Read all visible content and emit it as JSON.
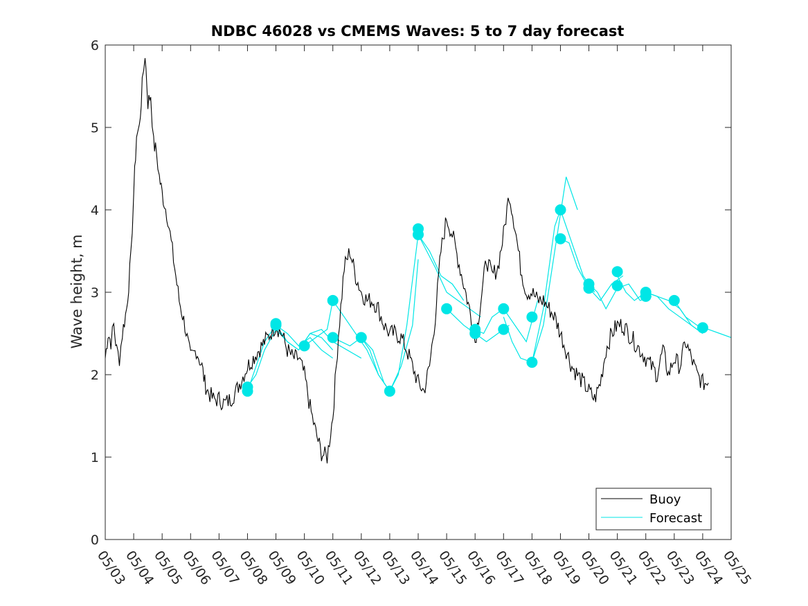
{
  "chart_data": {
    "type": "line",
    "title": "NDBC 46028 vs CMEMS Waves: 5 to 7 day forecast",
    "xlabel": "",
    "ylabel": "Wave height, m",
    "xlim": [
      "05/03",
      "05/25"
    ],
    "ylim": [
      0,
      6
    ],
    "x_ticks": [
      "05/03",
      "05/04",
      "05/05",
      "05/06",
      "05/07",
      "05/08",
      "05/09",
      "05/10",
      "05/11",
      "05/12",
      "05/13",
      "05/14",
      "05/15",
      "05/16",
      "05/17",
      "05/18",
      "05/19",
      "05/20",
      "05/21",
      "05/22",
      "05/23",
      "05/24",
      "05/25"
    ],
    "y_ticks": [
      0,
      1,
      2,
      3,
      4,
      5,
      6
    ],
    "grid": false,
    "legend_position": "bottom-right",
    "x_units": "days since 05/03",
    "series": [
      {
        "name": "Buoy",
        "color": "#000000",
        "x": [
          0.0,
          0.1,
          0.2,
          0.3,
          0.4,
          0.5,
          0.6,
          0.75,
          0.9,
          1.0,
          1.1,
          1.2,
          1.3,
          1.4,
          1.5,
          1.6,
          1.7,
          1.8,
          1.9,
          2.0,
          2.2,
          2.4,
          2.6,
          2.8,
          3.0,
          3.2,
          3.4,
          3.5,
          3.6,
          3.8,
          4.0,
          4.2,
          4.4,
          4.6,
          4.8,
          5.0,
          5.2,
          5.4,
          5.6,
          5.8,
          6.0,
          6.2,
          6.4,
          6.6,
          6.8,
          7.0,
          7.2,
          7.4,
          7.6,
          7.8,
          8.0,
          8.2,
          8.4,
          8.6,
          8.8,
          9.0,
          9.2,
          9.4,
          9.6,
          9.7,
          9.8,
          9.9,
          10.0,
          10.2,
          10.4,
          10.6,
          10.8,
          11.0,
          11.2,
          11.4,
          11.6,
          11.8,
          12.0,
          12.2,
          12.4,
          12.6,
          12.8,
          13.0,
          13.2,
          13.4,
          13.6,
          13.8,
          14.0,
          14.2,
          14.4,
          14.6,
          14.8,
          15.0,
          15.2,
          15.4,
          15.6,
          15.8,
          16.0,
          16.2,
          16.4,
          16.6,
          16.8,
          17.0,
          17.2,
          17.4,
          17.6,
          17.8,
          18.0,
          18.2,
          18.4,
          18.6,
          18.8,
          19.0,
          19.2,
          19.4,
          19.6,
          19.8,
          20.0,
          20.2,
          20.4,
          20.6,
          20.8,
          21.0,
          21.2
        ],
        "values": [
          2.2,
          2.5,
          2.4,
          2.6,
          2.3,
          2.2,
          2.5,
          2.8,
          3.4,
          4.2,
          4.9,
          5.0,
          5.5,
          5.9,
          5.3,
          5.4,
          4.8,
          4.7,
          4.4,
          4.2,
          3.9,
          3.4,
          2.9,
          2.6,
          2.2,
          2.3,
          2.1,
          1.9,
          1.8,
          1.7,
          1.7,
          1.65,
          1.7,
          1.8,
          1.95,
          2.1,
          2.2,
          2.3,
          2.4,
          2.5,
          2.6,
          2.5,
          2.3,
          2.2,
          2.2,
          2.0,
          1.6,
          1.3,
          1.05,
          1.0,
          1.5,
          2.5,
          3.3,
          3.5,
          3.2,
          3.0,
          2.9,
          2.9,
          2.8,
          2.7,
          2.6,
          2.55,
          2.5,
          2.5,
          2.45,
          2.3,
          2.1,
          1.9,
          1.8,
          2.1,
          2.7,
          3.5,
          3.9,
          3.7,
          3.4,
          3.1,
          2.8,
          2.4,
          2.9,
          3.4,
          3.2,
          3.3,
          3.7,
          4.2,
          3.8,
          3.3,
          3.0,
          3.0,
          2.9,
          2.9,
          2.8,
          2.7,
          2.5,
          2.3,
          2.1,
          2.0,
          1.9,
          1.8,
          1.7,
          1.9,
          2.3,
          2.5,
          2.6,
          2.6,
          2.5,
          2.4,
          2.3,
          2.2,
          2.1,
          2.0,
          2.3,
          2.0,
          2.2,
          2.1,
          2.4,
          2.2,
          2.0,
          1.9,
          1.9
        ]
      },
      {
        "name": "Forecast",
        "color": "#00e6e6",
        "values": []
      }
    ],
    "forecast_runs": [
      {
        "x": [
          5.0,
          5.3,
          5.6,
          6.0,
          6.4,
          6.8,
          7.2,
          7.6,
          8.0
        ],
        "values": [
          1.85,
          2.0,
          2.3,
          2.55,
          2.4,
          2.3,
          2.5,
          2.45,
          2.3
        ]
      },
      {
        "x": [
          5.0,
          5.3,
          5.6,
          6.0,
          6.4,
          6.8,
          7.2,
          7.6,
          8.0
        ],
        "values": [
          1.8,
          2.1,
          2.4,
          2.6,
          2.5,
          2.35,
          2.45,
          2.3,
          2.2
        ]
      },
      {
        "x": [
          6.0,
          6.4,
          6.8,
          7.2,
          7.6,
          8.0,
          8.5,
          9.0
        ],
        "values": [
          2.6,
          2.4,
          2.3,
          2.5,
          2.55,
          2.4,
          2.3,
          2.2
        ]
      },
      {
        "x": [
          7.0,
          7.4,
          7.8,
          8.0,
          8.4,
          8.8,
          9.2,
          9.6,
          10.0
        ],
        "values": [
          2.35,
          2.45,
          2.55,
          2.9,
          2.7,
          2.5,
          2.3,
          2.0,
          1.8
        ]
      },
      {
        "x": [
          8.0,
          8.3,
          8.6,
          9.0,
          9.4,
          9.8,
          10.1
        ],
        "values": [
          2.45,
          2.4,
          2.35,
          2.45,
          2.3,
          1.9,
          1.75
        ]
      },
      {
        "x": [
          9.0,
          9.3,
          9.6,
          10.0,
          10.4,
          10.8,
          11.0
        ],
        "values": [
          2.45,
          2.3,
          2.0,
          1.8,
          2.1,
          2.6,
          3.4
        ]
      },
      {
        "x": [
          10.0,
          10.3,
          10.6,
          11.0,
          11.4,
          11.8,
          12.2,
          12.6
        ],
        "values": [
          1.8,
          2.0,
          2.6,
          3.7,
          3.5,
          3.2,
          3.1,
          2.9
        ]
      },
      {
        "x": [
          11.0,
          11.3,
          11.6,
          12.0,
          12.4,
          12.8,
          13.2
        ],
        "values": [
          3.7,
          3.5,
          3.3,
          3.0,
          2.9,
          2.8,
          2.7
        ]
      },
      {
        "x": [
          12.0,
          12.3,
          12.6,
          13.0,
          13.4,
          13.8,
          14.2
        ],
        "values": [
          2.8,
          2.7,
          2.6,
          2.5,
          2.4,
          2.5,
          2.6
        ]
      },
      {
        "x": [
          13.0,
          13.3,
          13.6,
          14.0,
          14.4,
          14.8,
          15.2
        ],
        "values": [
          2.55,
          2.5,
          2.7,
          2.8,
          2.6,
          2.4,
          2.9
        ]
      },
      {
        "x": [
          14.0,
          14.3,
          14.6,
          15.0,
          15.4,
          15.8,
          16.2,
          16.6
        ],
        "values": [
          2.7,
          2.4,
          2.2,
          2.15,
          2.6,
          3.5,
          4.4,
          4.0
        ]
      },
      {
        "x": [
          15.0,
          15.4,
          15.8,
          16.0,
          16.4,
          16.8,
          17.2
        ],
        "values": [
          2.15,
          2.8,
          3.8,
          4.0,
          3.6,
          3.2,
          3.0
        ]
      },
      {
        "x": [
          16.0,
          16.3,
          16.6,
          17.0,
          17.4,
          17.8,
          18.2
        ],
        "values": [
          3.65,
          3.6,
          3.3,
          3.05,
          2.9,
          3.1,
          3.2
        ]
      },
      {
        "x": [
          17.0,
          17.3,
          17.6,
          18.0,
          18.4,
          18.8,
          19.2
        ],
        "values": [
          3.1,
          3.0,
          2.8,
          3.05,
          3.1,
          2.9,
          2.95
        ]
      },
      {
        "x": [
          18.0,
          18.3,
          18.6,
          19.0,
          19.4,
          19.8,
          20.2,
          20.6,
          21.0
        ],
        "values": [
          3.2,
          3.0,
          2.9,
          3.0,
          2.95,
          2.8,
          2.7,
          2.6,
          2.5
        ]
      },
      {
        "x": [
          19.0,
          19.4,
          19.8,
          20.2,
          20.6,
          21.0
        ],
        "values": [
          3.0,
          2.95,
          2.9,
          2.8,
          2.6,
          2.5
        ]
      },
      {
        "x": [
          20.0,
          20.4,
          20.8,
          21.2,
          21.6,
          22.0
        ],
        "values": [
          2.9,
          2.7,
          2.6,
          2.55,
          2.5,
          2.45
        ]
      }
    ],
    "forecast_markers": [
      {
        "x": 5.0,
        "y": 1.85
      },
      {
        "x": 5.0,
        "y": 1.8
      },
      {
        "x": 6.0,
        "y": 2.6
      },
      {
        "x": 6.0,
        "y": 2.62
      },
      {
        "x": 7.0,
        "y": 2.35
      },
      {
        "x": 8.0,
        "y": 2.9
      },
      {
        "x": 8.0,
        "y": 2.45
      },
      {
        "x": 9.0,
        "y": 2.45
      },
      {
        "x": 10.0,
        "y": 1.8
      },
      {
        "x": 11.0,
        "y": 3.7
      },
      {
        "x": 11.0,
        "y": 3.77
      },
      {
        "x": 12.0,
        "y": 2.8
      },
      {
        "x": 13.0,
        "y": 2.55
      },
      {
        "x": 13.0,
        "y": 2.5
      },
      {
        "x": 14.0,
        "y": 2.8
      },
      {
        "x": 14.0,
        "y": 2.55
      },
      {
        "x": 15.0,
        "y": 2.7
      },
      {
        "x": 15.0,
        "y": 2.15
      },
      {
        "x": 16.0,
        "y": 4.0
      },
      {
        "x": 16.0,
        "y": 3.65
      },
      {
        "x": 17.0,
        "y": 3.1
      },
      {
        "x": 17.0,
        "y": 3.05
      },
      {
        "x": 18.0,
        "y": 3.25
      },
      {
        "x": 18.0,
        "y": 3.08
      },
      {
        "x": 19.0,
        "y": 3.0
      },
      {
        "x": 19.0,
        "y": 2.95
      },
      {
        "x": 20.0,
        "y": 2.9
      },
      {
        "x": 21.0,
        "y": 2.57
      }
    ]
  }
}
